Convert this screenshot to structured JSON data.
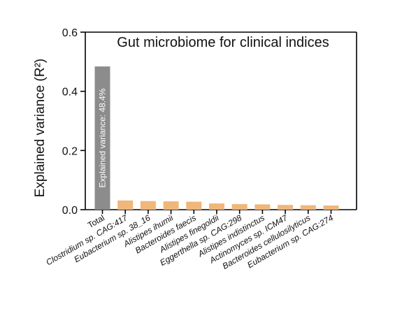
{
  "chart_data": {
    "type": "bar",
    "title": "Gut microbiome for clinical indices",
    "ylabel": "Explained variance (R²)",
    "ylim": [
      0,
      0.6
    ],
    "yticks": [
      "0.0",
      "0.2",
      "0.4",
      "0.6"
    ],
    "grid": false,
    "categories": [
      "Total",
      "Clostridium sp. CAG:417",
      "Eubacterium sp. 38_16",
      "Alistipes ihumii",
      "Bacteroides faecis",
      "Alistipes finegoldii",
      "Eggerthella sp. CAG:298",
      "Alistipes indistinctus",
      "Actinomyces sp. ICM47",
      "Bacteroides cellulosilyticus",
      "Eubacterium sp. CAG:274"
    ],
    "values": [
      0.484,
      0.031,
      0.029,
      0.028,
      0.027,
      0.021,
      0.019,
      0.018,
      0.016,
      0.015,
      0.014
    ],
    "bar_annotation": "Explained variance: 48.4%",
    "colors": {
      "total": "#8c8c8c",
      "species": "#f0b67a",
      "axis": "#000000"
    },
    "plain_categories": [
      "Total"
    ]
  }
}
